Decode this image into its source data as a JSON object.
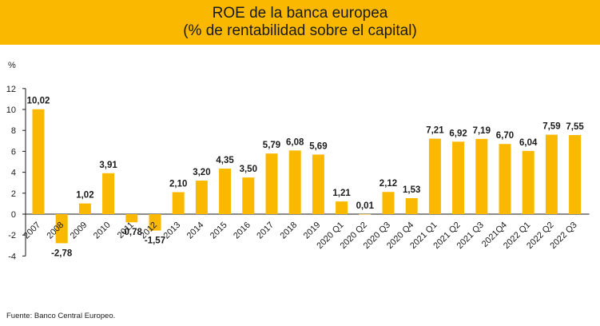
{
  "title_line1": "ROE de la banca europea",
  "title_line2": "(% de rentabilidad sobre el capital)",
  "source": "Fuente: Banco Central Europeo.",
  "colors": {
    "bar": "#fbb800",
    "banner": "#fbb800",
    "axis": "#1a1a1a"
  },
  "chart_data": {
    "type": "bar",
    "ylabel": "%",
    "ylim": [
      -4,
      12
    ],
    "yticks": [
      12,
      10,
      8,
      6,
      4,
      2,
      0,
      -2,
      -4
    ],
    "grid": false,
    "categories": [
      "2007",
      "2008",
      "2009",
      "2010",
      "2011",
      "2012",
      "2013",
      "2014",
      "2015",
      "2016",
      "2017",
      "2018",
      "2019",
      "2020 Q1",
      "2020 Q2",
      "2020 Q3",
      "2020 Q4",
      "2021 Q1",
      "2021 Q2",
      "2021 Q3",
      "2021Q4",
      "2022 Q1",
      "2022 Q2",
      "2022 Q3"
    ],
    "values": [
      10.02,
      -2.78,
      1.02,
      3.91,
      -0.78,
      -1.57,
      2.1,
      3.2,
      4.35,
      3.5,
      5.79,
      6.08,
      5.69,
      1.21,
      0.01,
      2.12,
      1.53,
      7.21,
      6.92,
      7.19,
      6.7,
      6.04,
      7.59,
      7.55
    ],
    "data_labels": [
      "10,02",
      "-2,78",
      "1,02",
      "3,91",
      "-0,78",
      "-1,57",
      "2,10",
      "3,20",
      "4,35",
      "3,50",
      "5,79",
      "6,08",
      "5,69",
      "1,21",
      "0,01",
      "2,12",
      "1,53",
      "7,21",
      "6,92",
      "7,19",
      "6,70",
      "6,04",
      "7,59",
      "7,55"
    ]
  }
}
